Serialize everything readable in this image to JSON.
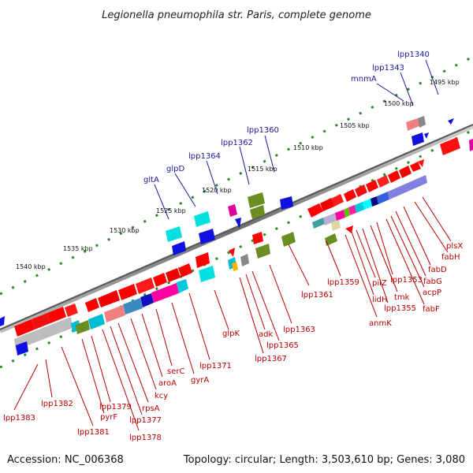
{
  "title": "Legionella pneumophila str. Paris, complete genome",
  "footer": {
    "accession": "Accession: NC_006368",
    "topology": "Topology: circular; Length: 3,503,610 bp; Genes: 3,080"
  },
  "colors": {
    "backbone": "#8a8a8a",
    "tick": "#2a8a2a",
    "top_label": "#1a1a9c",
    "bottom_label": "#b80000",
    "forward_gene": "#ff0000",
    "reverse_gene": "#0000dd"
  },
  "ticks": [
    {
      "label": "1495 kbp"
    },
    {
      "label": "1500 kbp"
    },
    {
      "label": "1505 kbp"
    },
    {
      "label": "1510 kbp"
    },
    {
      "label": "1515 kbp"
    },
    {
      "label": "1520 kbp"
    },
    {
      "label": "1525 kbp"
    },
    {
      "label": "1530 kbp"
    },
    {
      "label": "1535 kbp"
    },
    {
      "label": "1540 kbp"
    }
  ],
  "top_labels": [
    {
      "text": "lpp1340"
    },
    {
      "text": "lpp1343"
    },
    {
      "text": "mnmA"
    },
    {
      "text": "lpp1360"
    },
    {
      "text": "lpp1362"
    },
    {
      "text": "lpp1364"
    },
    {
      "text": "glpD"
    },
    {
      "text": "gltA"
    }
  ],
  "bottom_labels": [
    {
      "text": "plsX"
    },
    {
      "text": "fabH"
    },
    {
      "text": "fabD"
    },
    {
      "text": "fabG"
    },
    {
      "text": "acpP"
    },
    {
      "text": "fabF"
    },
    {
      "text": "lpp1353"
    },
    {
      "text": "tmk"
    },
    {
      "text": "lpp1355"
    },
    {
      "text": "pilZ"
    },
    {
      "text": "lidH"
    },
    {
      "text": "anmK"
    },
    {
      "text": "lpp1359"
    },
    {
      "text": "lpp1361"
    },
    {
      "text": "lpp1363"
    },
    {
      "text": "lpp1365"
    },
    {
      "text": "adk"
    },
    {
      "text": "lpp1367"
    },
    {
      "text": "glpK"
    },
    {
      "text": "lpp1371"
    },
    {
      "text": "gyrA"
    },
    {
      "text": "serC"
    },
    {
      "text": "aroA"
    },
    {
      "text": "kcy"
    },
    {
      "text": "rpsA"
    },
    {
      "text": "lpp1377"
    },
    {
      "text": "lpp1378"
    },
    {
      "text": "lpp1379"
    },
    {
      "text": "pyrF"
    },
    {
      "text": "lpp1381"
    },
    {
      "text": "lpp1382"
    },
    {
      "text": "lpp1383"
    }
  ]
}
